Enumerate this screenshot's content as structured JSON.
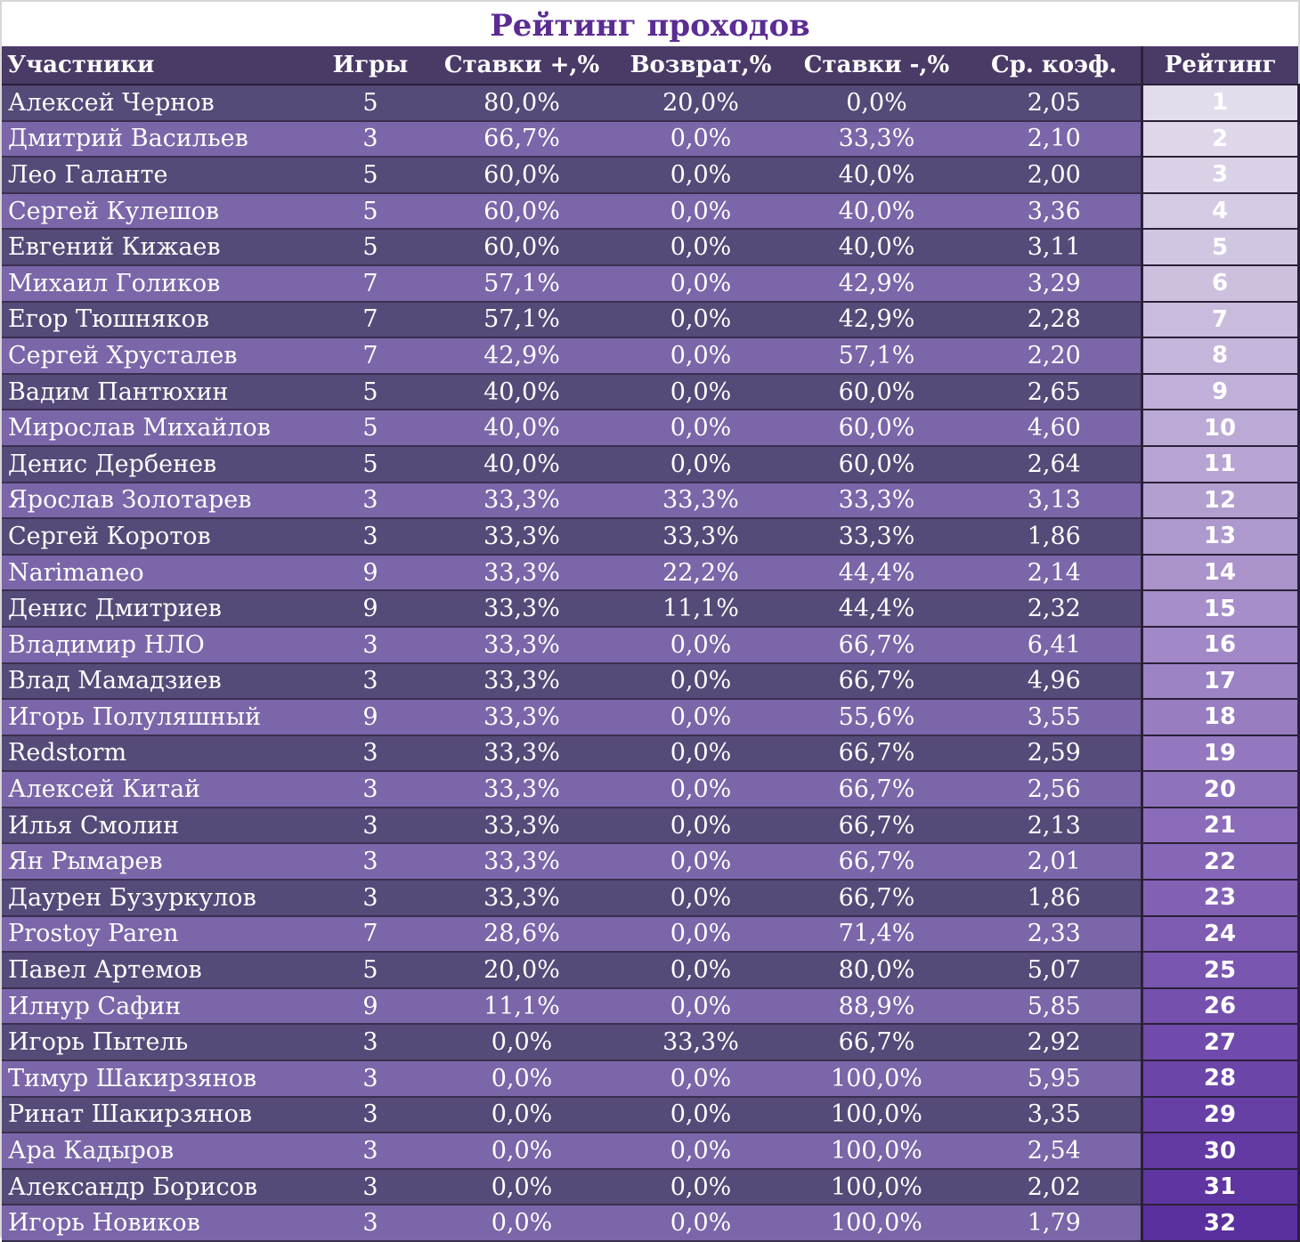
{
  "title": "Рейтинг проходов",
  "columns": {
    "name": "Участники",
    "games": "Игры",
    "plus": "Ставки +,%",
    "return": "Возврат,%",
    "minus": "Ставки -,%",
    "coef": "Ср. коэф.",
    "rank": "Рейтинг"
  },
  "rank_colors": {
    "top": "#e3dcec",
    "bottom": "#5a2f9e"
  },
  "rows": [
    {
      "name": "Алексей Чернов",
      "games": "5",
      "plus": "80,0%",
      "return": "20,0%",
      "minus": "0,0%",
      "coef": "2,05",
      "rank": "1"
    },
    {
      "name": "Дмитрий Васильев",
      "games": "3",
      "plus": "66,7%",
      "return": "0,0%",
      "minus": "33,3%",
      "coef": "2,10",
      "rank": "2"
    },
    {
      "name": "Лео Галанте",
      "games": "5",
      "plus": "60,0%",
      "return": "0,0%",
      "minus": "40,0%",
      "coef": "2,00",
      "rank": "3"
    },
    {
      "name": "Сергей Кулешов",
      "games": "5",
      "plus": "60,0%",
      "return": "0,0%",
      "minus": "40,0%",
      "coef": "3,36",
      "rank": "4"
    },
    {
      "name": "Евгений Кижаев",
      "games": "5",
      "plus": "60,0%",
      "return": "0,0%",
      "minus": "40,0%",
      "coef": "3,11",
      "rank": "5"
    },
    {
      "name": "Михаил Голиков",
      "games": "7",
      "plus": "57,1%",
      "return": "0,0%",
      "minus": "42,9%",
      "coef": "3,29",
      "rank": "6"
    },
    {
      "name": "Егор Тюшняков",
      "games": "7",
      "plus": "57,1%",
      "return": "0,0%",
      "minus": "42,9%",
      "coef": "2,28",
      "rank": "7"
    },
    {
      "name": "Сергей Хрусталев",
      "games": "7",
      "plus": "42,9%",
      "return": "0,0%",
      "minus": "57,1%",
      "coef": "2,20",
      "rank": "8"
    },
    {
      "name": "Вадим Пантюхин",
      "games": "5",
      "plus": "40,0%",
      "return": "0,0%",
      "minus": "60,0%",
      "coef": "2,65",
      "rank": "9"
    },
    {
      "name": "Мирослав Михайлов",
      "games": "5",
      "plus": "40,0%",
      "return": "0,0%",
      "minus": "60,0%",
      "coef": "4,60",
      "rank": "10"
    },
    {
      "name": "Денис Дербенев",
      "games": "5",
      "plus": "40,0%",
      "return": "0,0%",
      "minus": "60,0%",
      "coef": "2,64",
      "rank": "11"
    },
    {
      "name": "Ярослав Золотарев",
      "games": "3",
      "plus": "33,3%",
      "return": "33,3%",
      "minus": "33,3%",
      "coef": "3,13",
      "rank": "12"
    },
    {
      "name": "Сергей Коротов",
      "games": "3",
      "plus": "33,3%",
      "return": "33,3%",
      "minus": "33,3%",
      "coef": "1,86",
      "rank": "13"
    },
    {
      "name": "Narimaneo",
      "games": "9",
      "plus": "33,3%",
      "return": "22,2%",
      "minus": "44,4%",
      "coef": "2,14",
      "rank": "14"
    },
    {
      "name": "Денис Дмитриев",
      "games": "9",
      "plus": "33,3%",
      "return": "11,1%",
      "minus": "44,4%",
      "coef": "2,32",
      "rank": "15"
    },
    {
      "name": "Владимир НЛО",
      "games": "3",
      "plus": "33,3%",
      "return": "0,0%",
      "minus": "66,7%",
      "coef": "6,41",
      "rank": "16"
    },
    {
      "name": "Влад Мамадзиев",
      "games": "3",
      "plus": "33,3%",
      "return": "0,0%",
      "minus": "66,7%",
      "coef": "4,96",
      "rank": "17"
    },
    {
      "name": "Игорь Полуляшный",
      "games": "9",
      "plus": "33,3%",
      "return": "0,0%",
      "minus": "55,6%",
      "coef": "3,55",
      "rank": "18"
    },
    {
      "name": "Redstorm",
      "games": "3",
      "plus": "33,3%",
      "return": "0,0%",
      "minus": "66,7%",
      "coef": "2,59",
      "rank": "19"
    },
    {
      "name": "Алексей Китай",
      "games": "3",
      "plus": "33,3%",
      "return": "0,0%",
      "minus": "66,7%",
      "coef": "2,56",
      "rank": "20"
    },
    {
      "name": "Илья Смолин",
      "games": "3",
      "plus": "33,3%",
      "return": "0,0%",
      "minus": "66,7%",
      "coef": "2,13",
      "rank": "21"
    },
    {
      "name": "Ян Рымарев",
      "games": "3",
      "plus": "33,3%",
      "return": "0,0%",
      "minus": "66,7%",
      "coef": "2,01",
      "rank": "22"
    },
    {
      "name": "Даурен Бузуркулов",
      "games": "3",
      "plus": "33,3%",
      "return": "0,0%",
      "minus": "66,7%",
      "coef": "1,86",
      "rank": "23"
    },
    {
      "name": "Prostoy Paren",
      "games": "7",
      "plus": "28,6%",
      "return": "0,0%",
      "minus": "71,4%",
      "coef": "2,33",
      "rank": "24"
    },
    {
      "name": "Павел Артемов",
      "games": "5",
      "plus": "20,0%",
      "return": "0,0%",
      "minus": "80,0%",
      "coef": "5,07",
      "rank": "25"
    },
    {
      "name": "Илнур Сафин",
      "games": "9",
      "plus": "11,1%",
      "return": "0,0%",
      "minus": "88,9%",
      "coef": "5,85",
      "rank": "26"
    },
    {
      "name": "Игорь Пытель",
      "games": "3",
      "plus": "0,0%",
      "return": "33,3%",
      "minus": "66,7%",
      "coef": "2,92",
      "rank": "27"
    },
    {
      "name": "Тимур Шакирзянов",
      "games": "3",
      "plus": "0,0%",
      "return": "0,0%",
      "minus": "100,0%",
      "coef": "5,95",
      "rank": "28"
    },
    {
      "name": "Ринат Шакирзянов",
      "games": "3",
      "plus": "0,0%",
      "return": "0,0%",
      "minus": "100,0%",
      "coef": "3,35",
      "rank": "29"
    },
    {
      "name": "Ара Кадыров",
      "games": "3",
      "plus": "0,0%",
      "return": "0,0%",
      "minus": "100,0%",
      "coef": "2,54",
      "rank": "30"
    },
    {
      "name": "Александр Борисов",
      "games": "3",
      "plus": "0,0%",
      "return": "0,0%",
      "minus": "100,0%",
      "coef": "2,02",
      "rank": "31"
    },
    {
      "name": "Игорь Новиков",
      "games": "3",
      "plus": "0,0%",
      "return": "0,0%",
      "minus": "100,0%",
      "coef": "1,79",
      "rank": "32"
    }
  ]
}
